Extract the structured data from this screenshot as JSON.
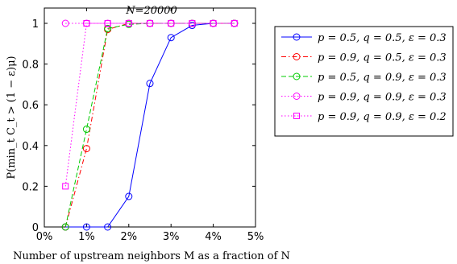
{
  "chart_data": {
    "type": "line",
    "title": "N=20000",
    "xlabel": "Number of upstream neighbors M as a fraction of N",
    "ylabel": "P(min_t C_t > (1 − ε)μ)",
    "xlim": [
      0,
      5
    ],
    "ylim": [
      0,
      1
    ],
    "x_ticks": [
      "0%",
      "1%",
      "2%",
      "3%",
      "4%",
      "5%"
    ],
    "y_ticks": [
      "0",
      "0.2",
      "0.4",
      "0.6",
      "0.8",
      "1"
    ],
    "grid": false,
    "legend_position": "outside-right-top",
    "series": [
      {
        "name": "p = 0.5, q = 0.5, ε = 0.3",
        "color": "#0000ff",
        "line": "solid",
        "marker": "circle",
        "x": [
          0.5,
          1.0,
          1.5,
          2.0,
          2.5,
          3.0,
          3.5,
          4.0,
          4.5
        ],
        "y": [
          0,
          0,
          0,
          0.15,
          0.705,
          0.93,
          0.99,
          1.0,
          1.0
        ]
      },
      {
        "name": "p = 0.9, q = 0.5, ε = 0.3",
        "color": "#ff0000",
        "line": "dashdot",
        "marker": "circle",
        "x": [
          0.5,
          1.0,
          1.5,
          2.0,
          2.5,
          3.0,
          3.5,
          4.0,
          4.5
        ],
        "y": [
          0,
          0.385,
          0.97,
          1.0,
          1.0,
          1.0,
          1.0,
          1.0,
          1.0
        ]
      },
      {
        "name": "p = 0.5, q = 0.9, ε = 0.3",
        "color": "#00cc00",
        "line": "dashed",
        "marker": "circle",
        "x": [
          0.5,
          1.0,
          1.5,
          2.0,
          2.5,
          3.0,
          3.5,
          4.0,
          4.5
        ],
        "y": [
          0,
          0.48,
          0.975,
          0.995,
          1.0,
          1.0,
          1.0,
          1.0,
          1.0
        ]
      },
      {
        "name": "p = 0.9, q = 0.9, ε = 0.3",
        "color": "#ff00ff",
        "line": "dotted",
        "marker": "circle",
        "x": [
          0.5,
          1.0,
          1.5,
          2.0,
          2.5,
          3.0,
          3.5,
          4.0,
          4.5
        ],
        "y": [
          1.0,
          1.0,
          1.0,
          1.0,
          1.0,
          1.0,
          1.0,
          1.0,
          1.0
        ]
      },
      {
        "name": "p = 0.9, q = 0.9, ε = 0.2",
        "color": "#ff00ff",
        "line": "dotted",
        "marker": "square",
        "x": [
          0.5,
          1.0,
          1.5,
          2.0,
          2.5,
          3.0,
          3.5,
          4.0,
          4.5
        ],
        "y": [
          0.2,
          1.0,
          1.0,
          1.0,
          1.0,
          1.0,
          1.0,
          1.0,
          1.0
        ]
      }
    ]
  }
}
